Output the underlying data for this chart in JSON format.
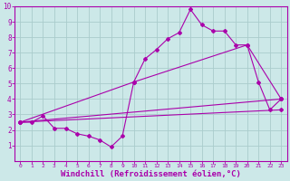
{
  "background_color": "#cce8e8",
  "grid_color": "#aacccc",
  "line_color": "#aa00aa",
  "xlim": [
    -0.5,
    23.5
  ],
  "ylim": [
    0,
    10
  ],
  "xlabel": "Windchill (Refroidissement éolien,°C)",
  "xticks": [
    0,
    1,
    2,
    3,
    4,
    5,
    6,
    7,
    8,
    9,
    10,
    11,
    12,
    13,
    14,
    15,
    16,
    17,
    18,
    19,
    20,
    21,
    22,
    23
  ],
  "yticks": [
    1,
    2,
    3,
    4,
    5,
    6,
    7,
    8,
    9,
    10
  ],
  "series1_x": [
    0,
    1,
    2,
    3,
    4,
    5,
    6,
    7,
    8,
    9,
    10,
    11,
    12,
    13,
    14,
    15,
    16,
    17,
    18,
    19,
    20,
    21,
    22,
    23
  ],
  "series1_y": [
    2.5,
    2.5,
    2.9,
    2.1,
    2.1,
    1.75,
    1.6,
    1.35,
    0.9,
    1.6,
    5.1,
    6.6,
    7.2,
    7.9,
    8.3,
    9.8,
    8.8,
    8.4,
    8.4,
    7.5,
    7.5,
    5.1,
    3.3,
    4.0
  ],
  "series2_x": [
    0,
    23
  ],
  "series2_y": [
    2.5,
    3.3
  ],
  "series3_x": [
    0,
    23
  ],
  "series3_y": [
    2.5,
    4.0
  ],
  "series4_x": [
    0,
    10,
    20,
    23
  ],
  "series4_y": [
    2.5,
    5.1,
    7.5,
    4.0
  ],
  "xlabel_fontsize": 6.5,
  "xtick_fontsize": 4.5,
  "ytick_fontsize": 5.5
}
